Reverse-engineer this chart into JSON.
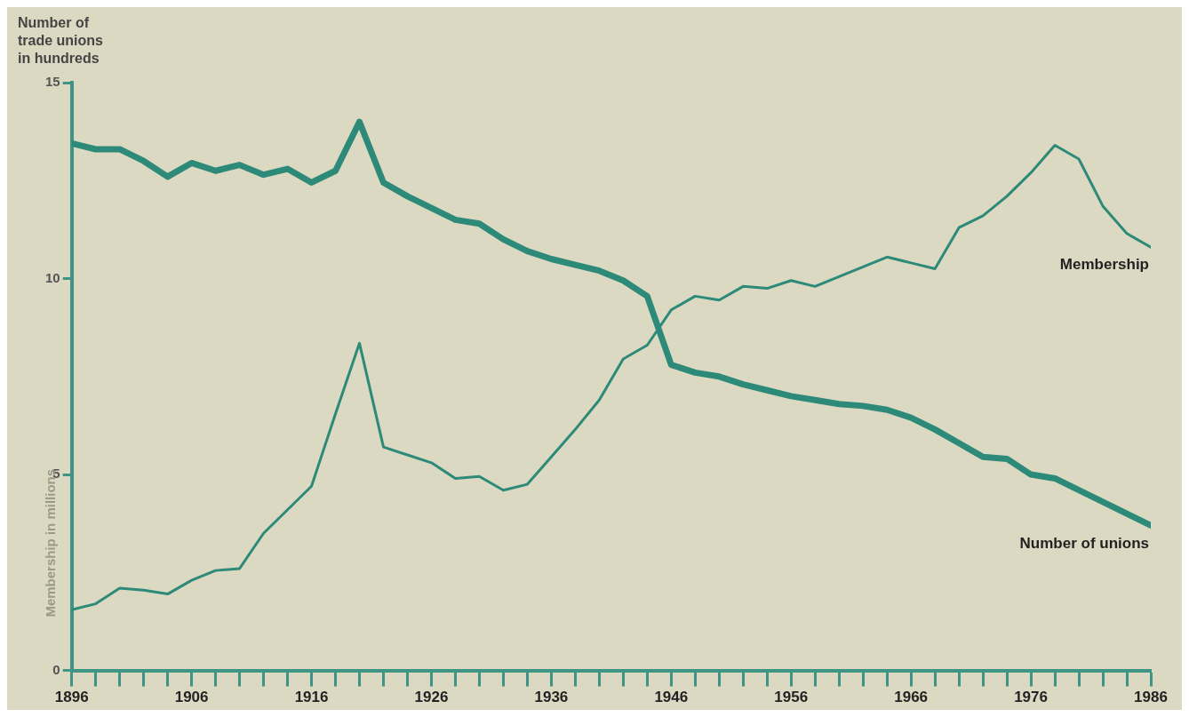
{
  "chart_data": {
    "type": "line",
    "ylabel": "Number of trade unions in hundreds",
    "annotations": [
      "Membership in millions"
    ],
    "x": [
      1896,
      1898,
      1900,
      1902,
      1904,
      1906,
      1908,
      1910,
      1912,
      1914,
      1916,
      1918,
      1920,
      1922,
      1924,
      1926,
      1928,
      1930,
      1932,
      1934,
      1936,
      1938,
      1940,
      1942,
      1944,
      1946,
      1948,
      1950,
      1952,
      1954,
      1956,
      1958,
      1960,
      1962,
      1964,
      1966,
      1968,
      1970,
      1972,
      1974,
      1976,
      1978,
      1980,
      1982,
      1984,
      1986
    ],
    "series": [
      {
        "name": "Membership",
        "color": "#2e8a78",
        "values": [
          1.55,
          1.7,
          2.1,
          2.05,
          1.95,
          2.3,
          2.55,
          2.6,
          3.5,
          4.1,
          4.7,
          6.55,
          8.35,
          5.7,
          5.5,
          5.3,
          4.9,
          4.95,
          4.6,
          4.75,
          5.45,
          6.15,
          6.9,
          7.95,
          8.3,
          9.2,
          9.55,
          9.45,
          9.8,
          9.75,
          9.95,
          9.8,
          10.05,
          10.3,
          10.55,
          10.4,
          10.25,
          11.3,
          11.6,
          12.1,
          12.7,
          13.4,
          13.05,
          11.85,
          11.15,
          10.8
        ]
      },
      {
        "name": "Number of unions",
        "color": "#2e8a78",
        "values": [
          13.45,
          13.3,
          13.3,
          13.0,
          12.6,
          12.95,
          12.75,
          12.9,
          12.65,
          12.8,
          12.45,
          12.75,
          14.0,
          12.45,
          12.1,
          11.8,
          11.5,
          11.4,
          11.0,
          10.7,
          10.5,
          10.35,
          10.2,
          9.95,
          9.55,
          7.8,
          7.6,
          7.5,
          7.3,
          7.15,
          7.0,
          6.9,
          6.8,
          6.75,
          6.65,
          6.45,
          6.15,
          5.8,
          5.45,
          5.4,
          5.0,
          4.9,
          4.6,
          4.3,
          4.0,
          3.7
        ]
      }
    ],
    "xlim": [
      1896,
      1986
    ],
    "xticks": [
      1896,
      {
        "value": 1898,
        "label": null
      },
      {
        "value": 1900,
        "label": null
      },
      {
        "value": 1902,
        "label": null
      },
      {
        "value": 1904,
        "label": null
      },
      1906,
      {
        "value": 1908,
        "label": null
      },
      {
        "value": 1910,
        "label": null
      },
      {
        "value": 1912,
        "label": null
      },
      {
        "value": 1914,
        "label": null
      },
      1916,
      {
        "value": 1918,
        "label": null
      },
      {
        "value": 1920,
        "label": null
      },
      {
        "value": 1922,
        "label": null
      },
      {
        "value": 1924,
        "label": null
      },
      1926,
      {
        "value": 1928,
        "label": null
      },
      {
        "value": 1930,
        "label": null
      },
      {
        "value": 1932,
        "label": null
      },
      {
        "value": 1934,
        "label": null
      },
      1936,
      {
        "value": 1938,
        "label": null
      },
      {
        "value": 1940,
        "label": null
      },
      {
        "value": 1942,
        "label": null
      },
      {
        "value": 1944,
        "label": null
      },
      1946,
      {
        "value": 1948,
        "label": null
      },
      {
        "value": 1950,
        "label": null
      },
      {
        "value": 1952,
        "label": null
      },
      {
        "value": 1954,
        "label": null
      },
      1956,
      {
        "value": 1958,
        "label": null
      },
      {
        "value": 1960,
        "label": null
      },
      {
        "value": 1962,
        "label": null
      },
      {
        "value": 1964,
        "label": null
      },
      1966,
      {
        "value": 1968,
        "label": null
      },
      {
        "value": 1970,
        "label": null
      },
      {
        "value": 1972,
        "label": null
      },
      {
        "value": 1974,
        "label": null
      },
      1976,
      {
        "value": 1978,
        "label": null
      },
      {
        "value": 1980,
        "label": null
      },
      {
        "value": 1982,
        "label": null
      },
      {
        "value": 1984,
        "label": null
      },
      1986
    ],
    "ylim": [
      0,
      15
    ],
    "yticks": [
      0,
      5,
      10,
      15
    ],
    "grid": false,
    "legend": false,
    "marker": "none",
    "line_style": "solid"
  }
}
